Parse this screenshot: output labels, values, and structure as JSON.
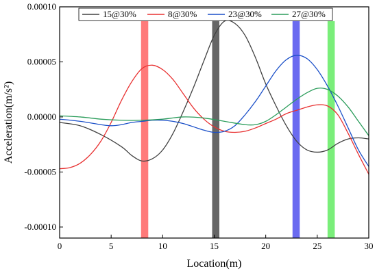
{
  "chart_data": {
    "type": "line",
    "title": "",
    "xlabel": "Location(m)",
    "ylabel": "Acceleration(m/s²)",
    "xlim": [
      0,
      30
    ],
    "ylim": [
      -0.00011,
      0.0001
    ],
    "xticks": [
      0,
      5,
      10,
      15,
      20,
      25,
      30
    ],
    "yticks": [
      -0.0001,
      -5e-05,
      0.0,
      5e-05,
      0.0001
    ],
    "ytick_labels": [
      "-0.00010",
      "-0.00005",
      "0.00000",
      "0.00005",
      "0.00010"
    ],
    "grid": false,
    "legend_position": "top",
    "series": [
      {
        "name": "15@30%",
        "color": "#404040",
        "x": [
          0,
          2,
          4,
          6,
          7,
          8,
          9,
          10,
          11,
          12,
          13,
          14,
          15,
          16,
          17,
          18,
          19,
          20,
          21,
          22,
          23,
          24,
          25,
          26,
          27,
          28,
          29,
          30
        ],
        "y": [
          -5e-06,
          -8e-06,
          -1.6e-05,
          -2.7e-05,
          -3.5e-05,
          -4e-05,
          -3.8e-05,
          -3e-05,
          -1.5e-05,
          5e-06,
          2.7e-05,
          5.1e-05,
          7.4e-05,
          8.7e-05,
          8.5e-05,
          7.4e-05,
          5.4e-05,
          3e-05,
          1e-05,
          -8e-06,
          -2.2e-05,
          -3e-05,
          -3.2e-05,
          -3e-05,
          -2.4e-05,
          -2e-05,
          -1.9e-05,
          -2e-05
        ]
      },
      {
        "name": "8@30%",
        "color": "#e83030",
        "x": [
          0,
          1,
          2,
          3,
          4,
          5,
          6,
          7,
          8,
          9,
          10,
          11,
          12,
          13,
          14,
          15,
          16,
          17,
          18,
          19,
          20,
          21,
          22,
          23,
          24,
          25,
          26,
          27,
          28,
          29,
          30
        ],
        "y": [
          -4.7e-05,
          -4.6e-05,
          -4.2e-05,
          -3.4e-05,
          -2.2e-05,
          -5e-06,
          1.5e-05,
          3.2e-05,
          4.4e-05,
          4.7e-05,
          4.3e-05,
          3.4e-05,
          2.1e-05,
          8e-06,
          -2e-06,
          -9e-06,
          -1.3e-05,
          -1.4e-05,
          -1.3e-05,
          -1e-05,
          -6e-06,
          -2e-06,
          3e-06,
          6e-06,
          9e-06,
          1.1e-05,
          1e-05,
          2e-06,
          -1.5e-05,
          -3.4e-05,
          -5.2e-05
        ]
      },
      {
        "name": "23@30%",
        "color": "#1a4fc8",
        "x": [
          0,
          2,
          4,
          5,
          6,
          7,
          8,
          9,
          10,
          11,
          12,
          13,
          14,
          15,
          16,
          17,
          18,
          19,
          20,
          21,
          22,
          23,
          24,
          25,
          26,
          27,
          28,
          29,
          30
        ],
        "y": [
          -2e-06,
          -4e-06,
          -7e-06,
          -8e-06,
          -7e-06,
          -5e-06,
          -4e-06,
          -3e-06,
          -3e-06,
          -4e-06,
          -6e-06,
          -9e-06,
          -1.2e-05,
          -1.4e-05,
          -1.3e-05,
          -8e-06,
          2e-06,
          1.4e-05,
          2.8e-05,
          4.2e-05,
          5.2e-05,
          5.6e-05,
          5.3e-05,
          4.3e-05,
          2.8e-05,
          1e-05,
          -1e-05,
          -3e-05,
          -4.5e-05
        ]
      },
      {
        "name": "27@30%",
        "color": "#2a9c5a",
        "x": [
          0,
          2,
          4,
          6,
          8,
          10,
          12,
          14,
          16,
          18,
          19,
          20,
          21,
          22,
          23,
          24,
          25,
          26,
          27,
          28,
          29,
          30
        ],
        "y": [
          1e-06,
          0.0,
          -2e-06,
          -3e-06,
          -3e-06,
          -2e-06,
          0.0,
          -1e-06,
          -4e-06,
          -7e-06,
          -7e-06,
          -4e-06,
          2e-06,
          9e-06,
          1.6e-05,
          2.2e-05,
          2.6e-05,
          2.5e-05,
          1.9e-05,
          9e-06,
          -4e-06,
          -1.7e-05
        ]
      }
    ],
    "bands": [
      {
        "x_start": 7.9,
        "x_end": 8.6,
        "y_top": 8.7e-05,
        "color": "#ff7a7a"
      },
      {
        "x_start": 14.8,
        "x_end": 15.5,
        "y_top": 8.7e-05,
        "color": "#666666"
      },
      {
        "x_start": 22.6,
        "x_end": 23.3,
        "y_top": 8.7e-05,
        "color": "#6a6af0"
      },
      {
        "x_start": 26.0,
        "x_end": 26.7,
        "y_top": 8.7e-05,
        "color": "#7aee7a"
      }
    ]
  }
}
